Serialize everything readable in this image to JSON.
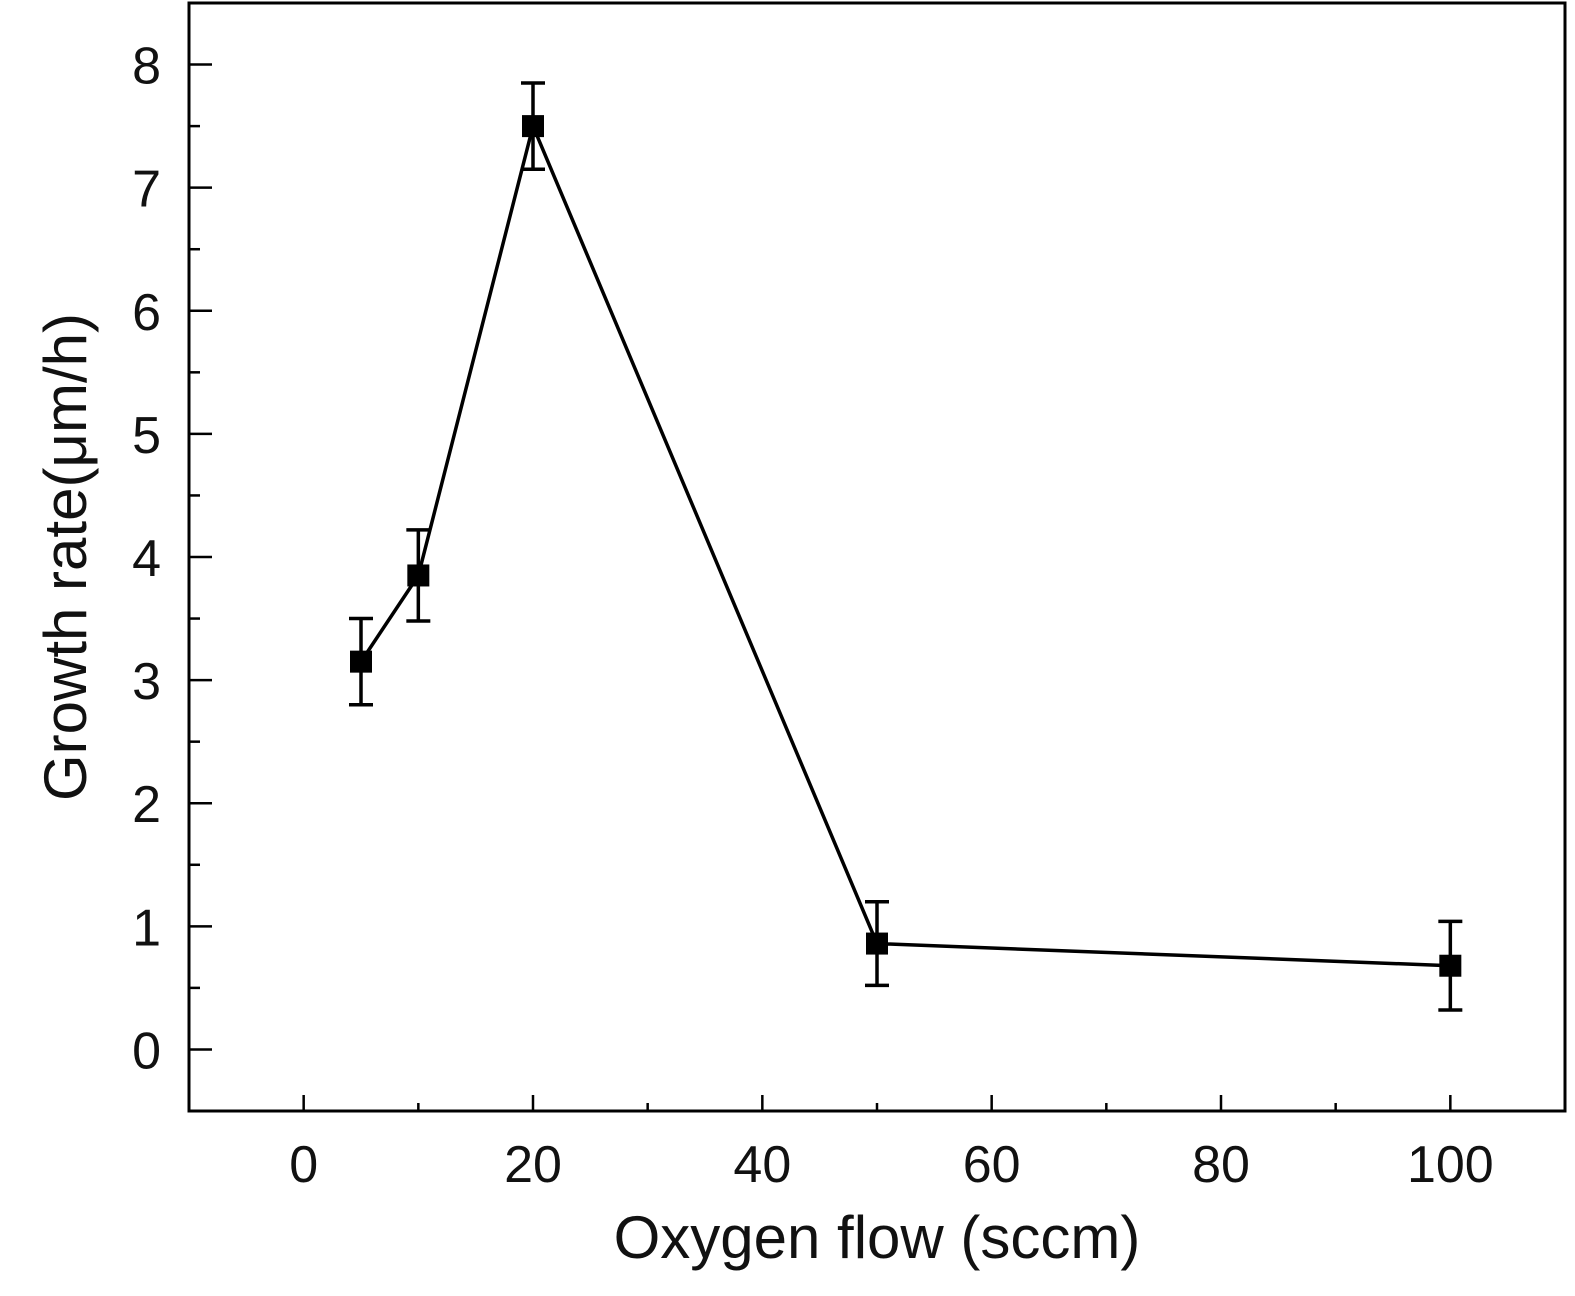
{
  "chart_data": {
    "type": "line",
    "title": "",
    "xlabel": "Oxygen flow (sccm)",
    "ylabel": "Growth rate(μm/h)",
    "xlim": [
      -10,
      110
    ],
    "ylim": [
      -0.5,
      8.5
    ],
    "xticks": [
      0,
      20,
      40,
      60,
      80,
      100
    ],
    "yticks": [
      0,
      1,
      2,
      3,
      4,
      5,
      6,
      7,
      8
    ],
    "xtick_labels": [
      "0",
      "20",
      "40",
      "60",
      "80",
      "100"
    ],
    "ytick_labels": [
      "0",
      "1",
      "2",
      "3",
      "4",
      "5",
      "6",
      "7",
      "8"
    ],
    "grid": false,
    "legend": "none",
    "marker": "square",
    "line_color": "#000000",
    "series": [
      {
        "x": [
          5,
          10,
          20,
          50,
          100
        ],
        "y": [
          3.15,
          3.85,
          7.5,
          0.86,
          0.68
        ],
        "error": [
          0.35,
          0.37,
          0.35,
          0.34,
          0.36
        ]
      }
    ]
  }
}
